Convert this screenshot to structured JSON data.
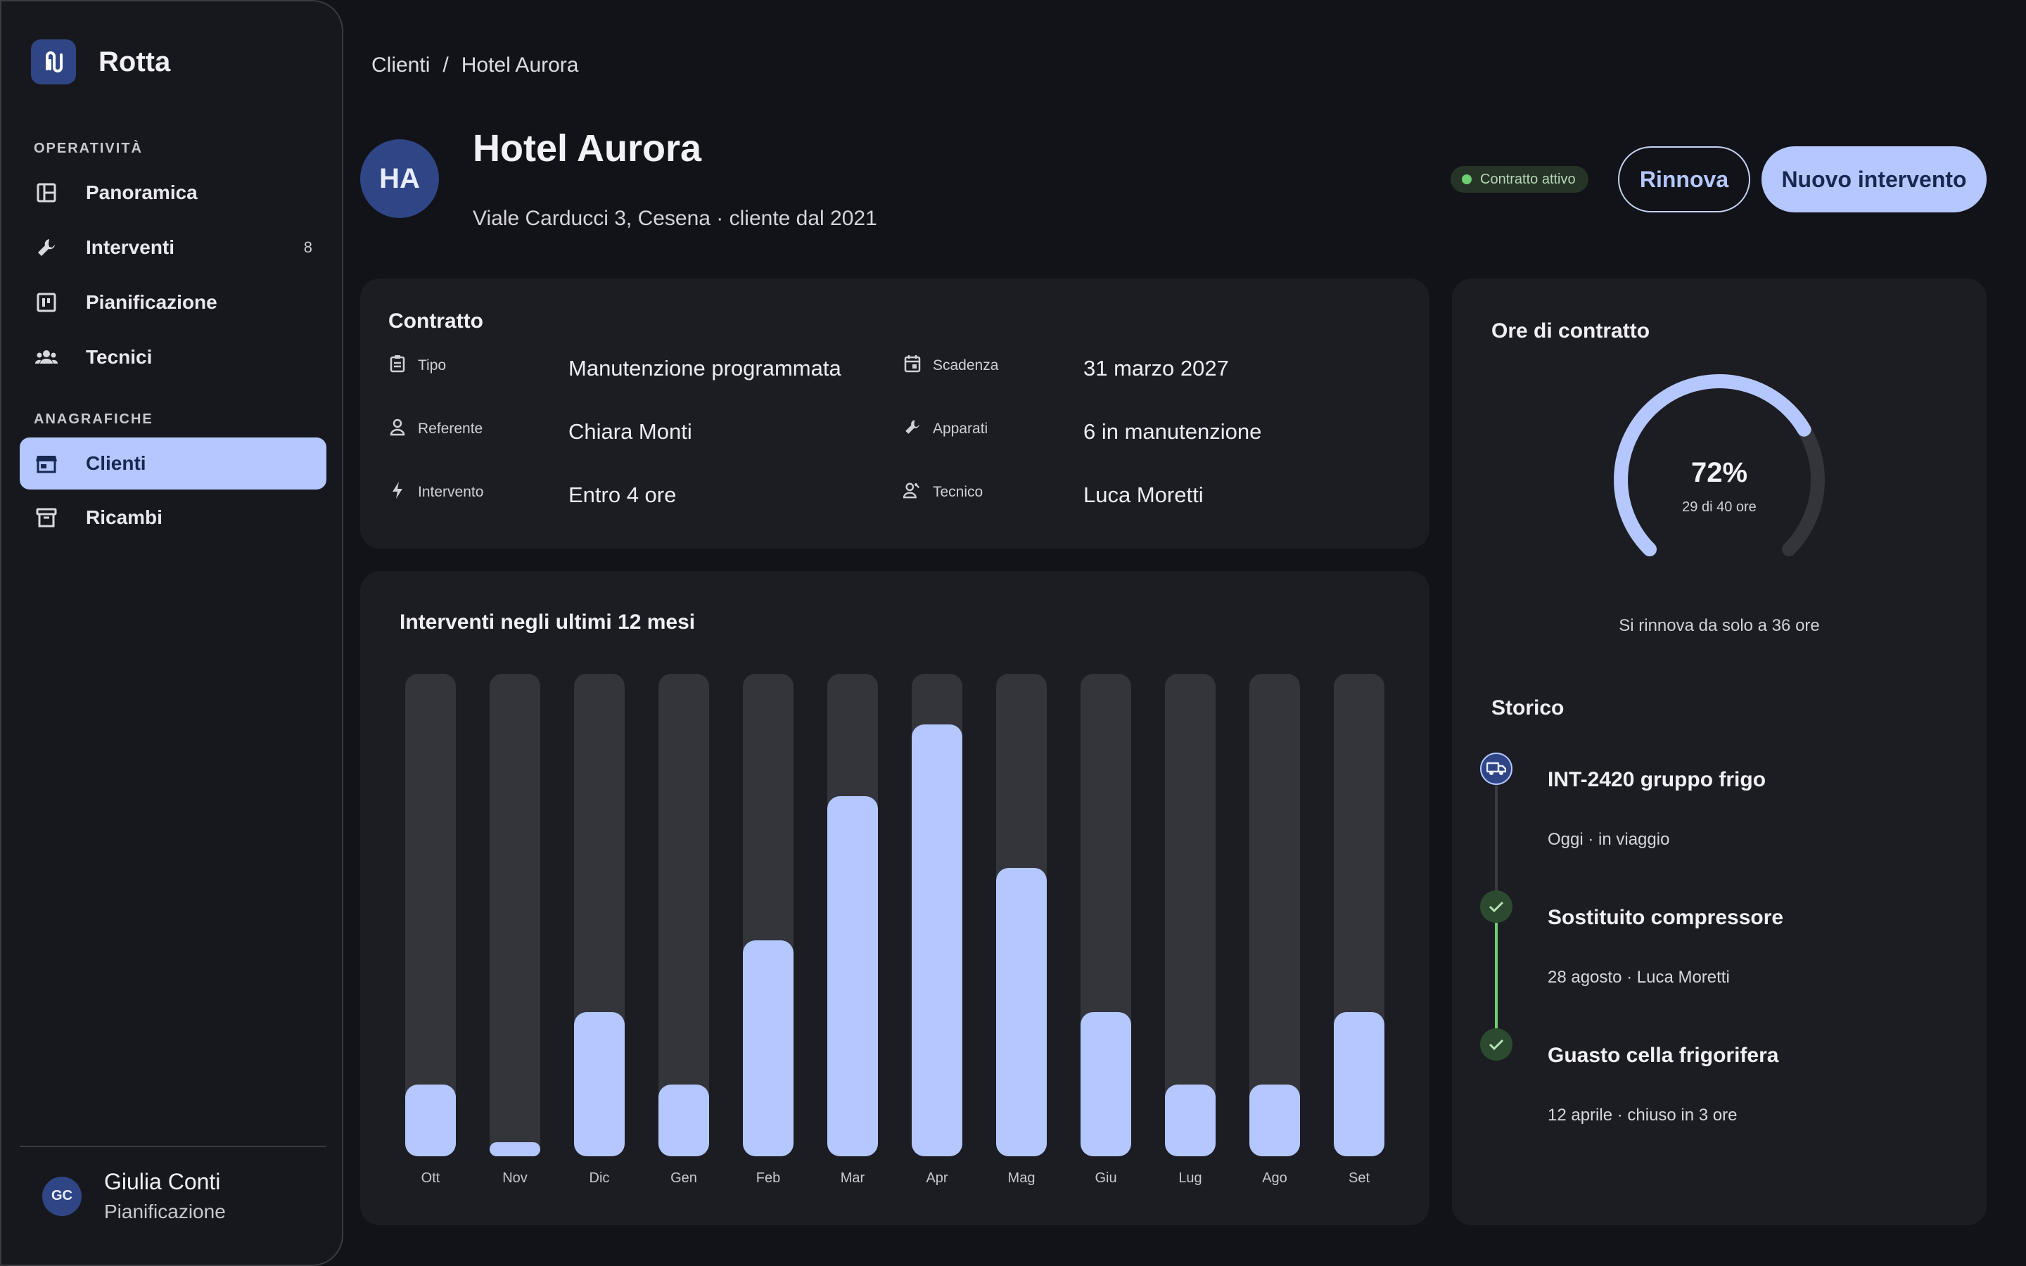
{
  "app": {
    "name": "Rotta"
  },
  "sidebar": {
    "sections": [
      {
        "title": "OPERATIVITÀ"
      },
      {
        "title": "ANAGRAFICHE"
      }
    ],
    "items": [
      {
        "label": "Panoramica",
        "icon": "dashboard-icon"
      },
      {
        "label": "Interventi",
        "icon": "wrench-icon",
        "badge": "8"
      },
      {
        "label": "Pianificazione",
        "icon": "calendar-board-icon"
      },
      {
        "label": "Tecnici",
        "icon": "group-icon"
      },
      {
        "label": "Clienti",
        "icon": "storefront-icon",
        "active": true
      },
      {
        "label": "Ricambi",
        "icon": "archive-icon"
      }
    ],
    "user": {
      "initials": "GC",
      "name": "Giulia Conti",
      "role": "Pianificazione"
    }
  },
  "breadcrumb": {
    "parent": "Clienti",
    "separator": "/",
    "current": "Hotel Aurora"
  },
  "header": {
    "initials": "HA",
    "title": "Hotel Aurora",
    "subtitle": "Viale Carducci 3, Cesena · cliente dal 2021",
    "status": "Contratto attivo",
    "status_color": "#6fcf72",
    "renew_label": "Rinnova",
    "new_label": "Nuovo intervento"
  },
  "contract": {
    "title": "Contratto",
    "fields": [
      {
        "label": "Tipo",
        "value": "Manutenzione programmata",
        "icon": "clipboard-icon"
      },
      {
        "label": "Scadenza",
        "value": "31 marzo 2027",
        "icon": "calendar-icon"
      },
      {
        "label": "Referente",
        "value": "Chiara Monti",
        "icon": "person-icon"
      },
      {
        "label": "Apparati",
        "value": "6 in manutenzione",
        "icon": "wrench-icon"
      },
      {
        "label": "Intervento",
        "value": "Entro 4 ore",
        "icon": "bolt-icon"
      },
      {
        "label": "Tecnico",
        "value": "Luca Moretti",
        "icon": "technician-icon"
      }
    ]
  },
  "chart": {
    "title": "Interventi negli ultimi 12 mesi"
  },
  "chart_data": {
    "type": "bar",
    "title": "Interventi negli ultimi 12 mesi",
    "categories": [
      "Ott",
      "Nov",
      "Dic",
      "Gen",
      "Feb",
      "Mar",
      "Apr",
      "Mag",
      "Giu",
      "Lug",
      "Ago",
      "Set"
    ],
    "values": [
      1,
      0.2,
      2,
      1,
      3,
      5,
      6,
      4,
      2,
      1,
      1,
      2
    ],
    "ylim": [
      0,
      6.7
    ],
    "grid": false,
    "bar_color": "#b5c7ff",
    "track_color": "#34353b"
  },
  "hours": {
    "title": "Ore di contratto",
    "percent_label": "72%",
    "percent": 72,
    "detail": "29 di 40 ore",
    "note": "Si rinnova da solo a 36 ore"
  },
  "history": {
    "title": "Storico",
    "items": [
      {
        "title": "INT-2420 gruppo frigo",
        "sub": "Oggi · in viaggio",
        "icon": "truck-icon"
      },
      {
        "title": "Sostituito compressore",
        "sub": "28 agosto · Luca Moretti",
        "icon": "check-icon"
      },
      {
        "title": "Guasto cella frigorifera",
        "sub": "12 aprile · chiuso in 3 ore",
        "icon": "check-icon"
      }
    ]
  }
}
